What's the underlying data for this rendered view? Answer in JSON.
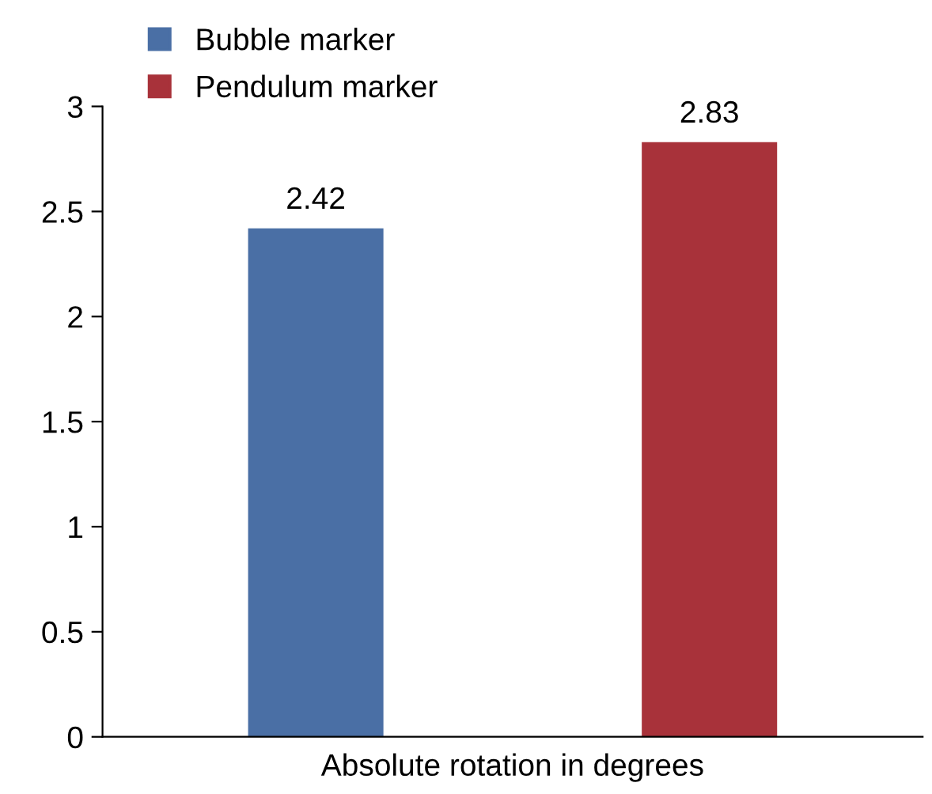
{
  "chart_data": {
    "type": "bar",
    "categories": [
      null
    ],
    "xlabel": "Absolute rotation in degrees",
    "series": [
      {
        "name": "Bubble marker",
        "color": "#4a6fa5",
        "values": [
          2.42
        ]
      },
      {
        "name": "Pendulum marker",
        "color": "#a8323a",
        "values": [
          2.83
        ]
      }
    ],
    "ylim": [
      0,
      3
    ],
    "yticks": [
      0,
      0.5,
      1,
      1.5,
      2,
      2.5,
      3
    ],
    "data_labels": true,
    "legend": "top left",
    "grid": false
  }
}
